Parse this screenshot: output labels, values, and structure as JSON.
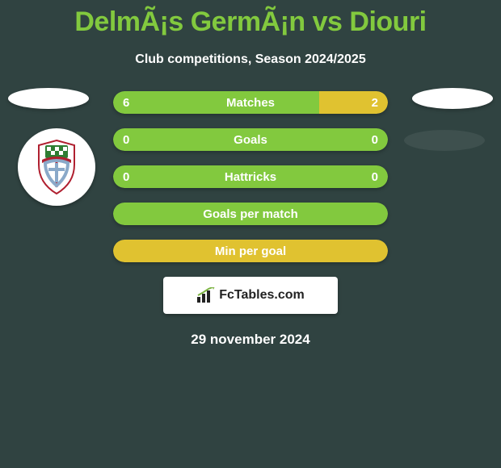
{
  "title": "DelmÃ¡s GermÃ¡n vs Diouri",
  "subtitle": "Club competitions, Season 2024/2025",
  "colors": {
    "accent": "#82c93e",
    "accent_yellow": "#e0c230",
    "background": "#304341",
    "white": "#ffffff"
  },
  "bars": [
    {
      "label": "Matches",
      "left_value": "6",
      "right_value": "2",
      "left_pct": 75,
      "right_pct": 25,
      "left_color": "#82c93e",
      "right_color": "#e0c230",
      "show_values": true
    },
    {
      "label": "Goals",
      "left_value": "0",
      "right_value": "0",
      "left_pct": 0,
      "right_pct": 0,
      "full_color": "#82c93e",
      "show_values": true
    },
    {
      "label": "Hattricks",
      "left_value": "0",
      "right_value": "0",
      "left_pct": 0,
      "right_pct": 0,
      "full_color": "#82c93e",
      "show_values": true
    },
    {
      "label": "Goals per match",
      "left_value": "",
      "right_value": "",
      "left_pct": 0,
      "right_pct": 0,
      "full_color": "#82c93e",
      "show_values": false
    },
    {
      "label": "Min per goal",
      "left_value": "",
      "right_value": "",
      "left_pct": 0,
      "right_pct": 0,
      "full_color": "#e0c230",
      "show_values": false
    }
  ],
  "footer_brand": "FcTables.com",
  "date": "29 november 2024"
}
